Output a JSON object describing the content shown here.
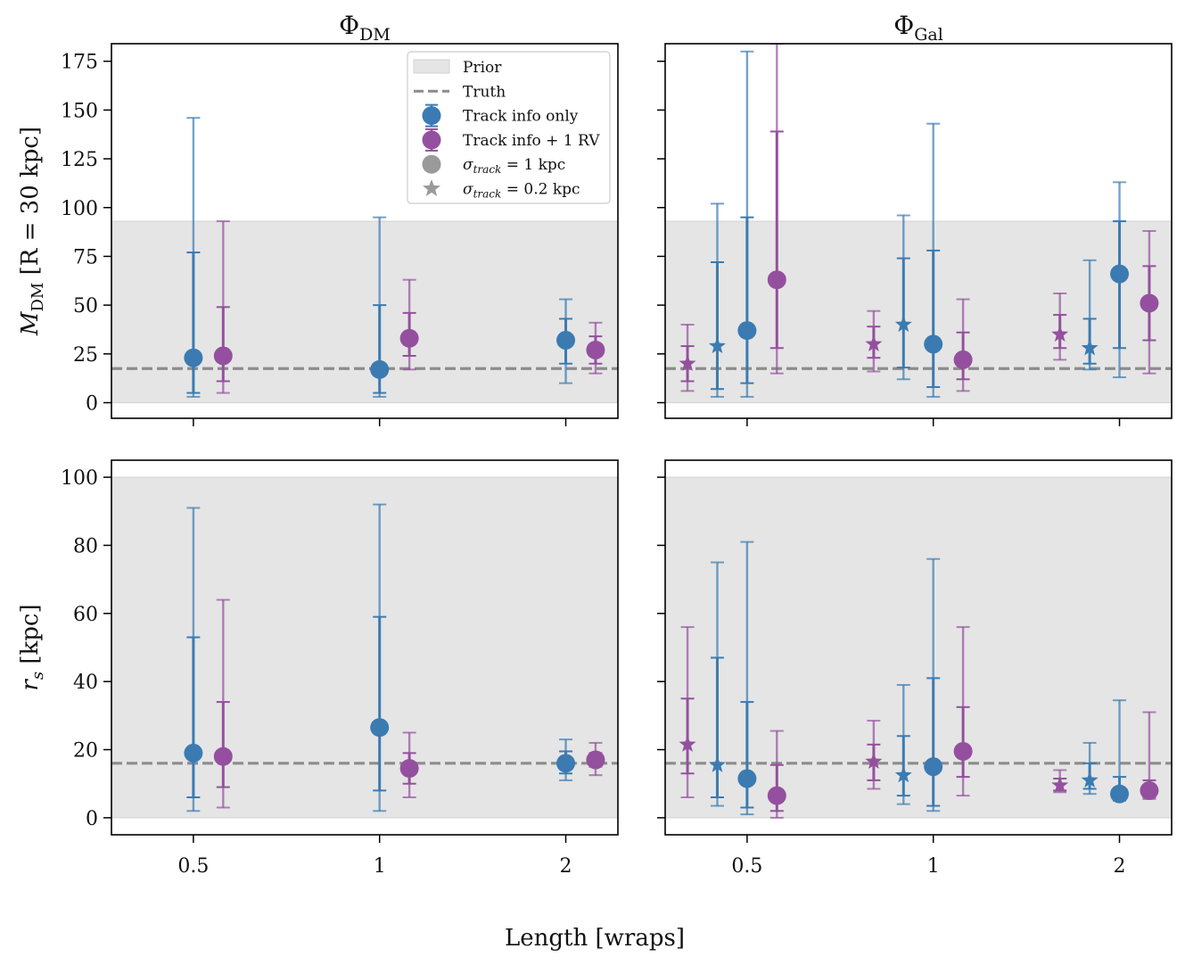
{
  "chart_data": {
    "type": "errorbar",
    "colors": {
      "track": "#3b7bb2",
      "track_rv": "#94509e",
      "prior": "#e5e5e5",
      "truth": "#8c8c8c",
      "legend_marker": "#9a9a9a"
    },
    "figure_xlabel": "Length [wraps]",
    "x_ticks": [
      {
        "value": 0.5,
        "label": "0.5"
      },
      {
        "value": 1,
        "label": "1"
      },
      {
        "value": 2,
        "label": "2"
      }
    ],
    "columns": [
      {
        "key": "dm",
        "title_main": "Φ",
        "title_sub": "DM"
      },
      {
        "key": "gal",
        "title_main": "Φ",
        "title_sub": "Gal"
      }
    ],
    "rows": [
      {
        "key": "mass",
        "ylabel_main": "M",
        "ylabel_sub": "DM",
        "ylabel_rest": "[R = 30 kpc]",
        "ylim": [
          -8,
          184
        ],
        "yticks": [
          0,
          25,
          50,
          75,
          100,
          125,
          150,
          175
        ],
        "prior": [
          0,
          93
        ],
        "truth": 17.5
      },
      {
        "key": "rs",
        "ylabel_main": "r",
        "ylabel_sub": "s",
        "ylabel_rest": "[kpc]",
        "ylim": [
          -5,
          105
        ],
        "yticks": [
          0,
          20,
          40,
          60,
          80,
          100
        ],
        "prior": [
          0,
          100
        ],
        "truth": 16
      }
    ],
    "legend": [
      {
        "key": "prior",
        "label": "Prior",
        "symbol": "patch"
      },
      {
        "key": "truth",
        "label": "Truth",
        "symbol": "dash"
      },
      {
        "key": "track",
        "label": "Track info only",
        "symbol": "errorbar-circle",
        "color": "track"
      },
      {
        "key": "track_rv",
        "label": "Track info + 1 RV",
        "symbol": "errorbar-circle",
        "color": "track_rv"
      },
      {
        "key": "sigma1",
        "label_sym": "σ",
        "label_sub": "track",
        "label_rest": " = 1 kpc",
        "symbol": "circle"
      },
      {
        "key": "sigma02",
        "label_sym": "σ",
        "label_sub": "track",
        "label_rest": " = 0.2 kpc",
        "symbol": "star"
      }
    ],
    "points": {
      "mass_dm": [
        {
          "series": "track",
          "marker": "circle",
          "x": 0.5,
          "xoff": 0.0,
          "val": 23,
          "in_lo": 5,
          "in_hi": 77,
          "out_lo": 3,
          "out_hi": 146
        },
        {
          "series": "track_rv",
          "marker": "circle",
          "x": 0.5,
          "xoff": 0.16,
          "val": 24,
          "in_lo": 11,
          "in_hi": 49,
          "out_lo": 5,
          "out_hi": 93
        },
        {
          "series": "track",
          "marker": "circle",
          "x": 1,
          "xoff": 0.0,
          "val": 17,
          "in_lo": 5,
          "in_hi": 50,
          "out_lo": 3,
          "out_hi": 95
        },
        {
          "series": "track_rv",
          "marker": "circle",
          "x": 1,
          "xoff": 0.16,
          "val": 33,
          "in_lo": 24,
          "in_hi": 46,
          "out_lo": 17,
          "out_hi": 63
        },
        {
          "series": "track",
          "marker": "circle",
          "x": 2,
          "xoff": 0.0,
          "val": 32,
          "in_lo": 20,
          "in_hi": 43,
          "out_lo": 10,
          "out_hi": 53
        },
        {
          "series": "track_rv",
          "marker": "circle",
          "x": 2,
          "xoff": 0.16,
          "val": 27,
          "in_lo": 20,
          "in_hi": 34,
          "out_lo": 15,
          "out_hi": 41
        }
      ],
      "mass_gal": [
        {
          "series": "track_rv",
          "marker": "star",
          "x": 0.5,
          "xoff": -0.32,
          "val": 20,
          "in_lo": 11,
          "in_hi": 29,
          "out_lo": 6,
          "out_hi": 40
        },
        {
          "series": "track",
          "marker": "star",
          "x": 0.5,
          "xoff": -0.16,
          "val": 29,
          "in_lo": 7,
          "in_hi": 72,
          "out_lo": 3,
          "out_hi": 102
        },
        {
          "series": "track",
          "marker": "circle",
          "x": 0.5,
          "xoff": 0.0,
          "val": 37,
          "in_lo": 10,
          "in_hi": 95,
          "out_lo": 3,
          "out_hi": 180
        },
        {
          "series": "track_rv",
          "marker": "circle",
          "x": 0.5,
          "xoff": 0.16,
          "val": 63,
          "in_lo": 28,
          "in_hi": 139,
          "out_lo": 15,
          "out_hi": 184
        },
        {
          "series": "track_rv",
          "marker": "star",
          "x": 1,
          "xoff": -0.32,
          "val": 30,
          "in_lo": 23,
          "in_hi": 39,
          "out_lo": 16,
          "out_hi": 47
        },
        {
          "series": "track",
          "marker": "star",
          "x": 1,
          "xoff": -0.16,
          "val": 40,
          "in_lo": 18,
          "in_hi": 74,
          "out_lo": 12,
          "out_hi": 96
        },
        {
          "series": "track",
          "marker": "circle",
          "x": 1,
          "xoff": 0.0,
          "val": 30,
          "in_lo": 8,
          "in_hi": 78,
          "out_lo": 3,
          "out_hi": 143
        },
        {
          "series": "track_rv",
          "marker": "circle",
          "x": 1,
          "xoff": 0.16,
          "val": 22,
          "in_lo": 12,
          "in_hi": 36,
          "out_lo": 6,
          "out_hi": 53
        },
        {
          "series": "track_rv",
          "marker": "star",
          "x": 2,
          "xoff": -0.32,
          "val": 35,
          "in_lo": 28,
          "in_hi": 45,
          "out_lo": 22,
          "out_hi": 56
        },
        {
          "series": "track",
          "marker": "star",
          "x": 2,
          "xoff": -0.16,
          "val": 28,
          "in_lo": 20,
          "in_hi": 43,
          "out_lo": 17,
          "out_hi": 73
        },
        {
          "series": "track",
          "marker": "circle",
          "x": 2,
          "xoff": 0.0,
          "val": 66,
          "in_lo": 28,
          "in_hi": 93,
          "out_lo": 13,
          "out_hi": 113
        },
        {
          "series": "track_rv",
          "marker": "circle",
          "x": 2,
          "xoff": 0.16,
          "val": 51,
          "in_lo": 32,
          "in_hi": 70,
          "out_lo": 15,
          "out_hi": 88
        }
      ],
      "rs_dm": [
        {
          "series": "track",
          "marker": "circle",
          "x": 0.5,
          "xoff": 0.0,
          "val": 19,
          "in_lo": 6,
          "in_hi": 53,
          "out_lo": 2,
          "out_hi": 91
        },
        {
          "series": "track_rv",
          "marker": "circle",
          "x": 0.5,
          "xoff": 0.16,
          "val": 18,
          "in_lo": 9,
          "in_hi": 34,
          "out_lo": 3,
          "out_hi": 64
        },
        {
          "series": "track",
          "marker": "circle",
          "x": 1,
          "xoff": 0.0,
          "val": 26.5,
          "in_lo": 8,
          "in_hi": 59,
          "out_lo": 2,
          "out_hi": 92
        },
        {
          "series": "track_rv",
          "marker": "circle",
          "x": 1,
          "xoff": 0.16,
          "val": 14.5,
          "in_lo": 10,
          "in_hi": 19,
          "out_lo": 6,
          "out_hi": 25
        },
        {
          "series": "track",
          "marker": "circle",
          "x": 2,
          "xoff": 0.0,
          "val": 16,
          "in_lo": 13,
          "in_hi": 19.5,
          "out_lo": 11,
          "out_hi": 23
        },
        {
          "series": "track_rv",
          "marker": "circle",
          "x": 2,
          "xoff": 0.16,
          "val": 17,
          "in_lo": 15,
          "in_hi": 19,
          "out_lo": 12.5,
          "out_hi": 22
        }
      ],
      "rs_gal": [
        {
          "series": "track_rv",
          "marker": "star",
          "x": 0.5,
          "xoff": -0.32,
          "val": 21.5,
          "in_lo": 13,
          "in_hi": 35,
          "out_lo": 6,
          "out_hi": 56
        },
        {
          "series": "track",
          "marker": "star",
          "x": 0.5,
          "xoff": -0.16,
          "val": 15.5,
          "in_lo": 6,
          "in_hi": 47,
          "out_lo": 3.5,
          "out_hi": 75
        },
        {
          "series": "track",
          "marker": "circle",
          "x": 0.5,
          "xoff": 0.0,
          "val": 11.5,
          "in_lo": 3,
          "in_hi": 34,
          "out_lo": 1,
          "out_hi": 81
        },
        {
          "series": "track_rv",
          "marker": "circle",
          "x": 0.5,
          "xoff": 0.16,
          "val": 6.5,
          "in_lo": 2,
          "in_hi": 15.5,
          "out_lo": 0,
          "out_hi": 25.5
        },
        {
          "series": "track_rv",
          "marker": "star",
          "x": 1,
          "xoff": -0.32,
          "val": 16.5,
          "in_lo": 11,
          "in_hi": 21.5,
          "out_lo": 8.5,
          "out_hi": 28.5
        },
        {
          "series": "track",
          "marker": "star",
          "x": 1,
          "xoff": -0.16,
          "val": 12.5,
          "in_lo": 6.5,
          "in_hi": 24,
          "out_lo": 4,
          "out_hi": 39
        },
        {
          "series": "track",
          "marker": "circle",
          "x": 1,
          "xoff": 0.0,
          "val": 15,
          "in_lo": 3.5,
          "in_hi": 41,
          "out_lo": 2,
          "out_hi": 76
        },
        {
          "series": "track_rv",
          "marker": "circle",
          "x": 1,
          "xoff": 0.16,
          "val": 19.5,
          "in_lo": 12,
          "in_hi": 32.5,
          "out_lo": 6.5,
          "out_hi": 56
        },
        {
          "series": "track_rv",
          "marker": "star",
          "x": 2,
          "xoff": -0.32,
          "val": 9.5,
          "in_lo": 8,
          "in_hi": 11.5,
          "out_lo": 7.5,
          "out_hi": 14
        },
        {
          "series": "track",
          "marker": "star",
          "x": 2,
          "xoff": -0.16,
          "val": 11,
          "in_lo": 8.5,
          "in_hi": 16,
          "out_lo": 7,
          "out_hi": 22
        },
        {
          "series": "track",
          "marker": "circle",
          "x": 2,
          "xoff": 0.0,
          "val": 7,
          "in_lo": 5.5,
          "in_hi": 12,
          "out_lo": 5,
          "out_hi": 34.5
        },
        {
          "series": "track_rv",
          "marker": "circle",
          "x": 2,
          "xoff": 0.16,
          "val": 8,
          "in_lo": 6,
          "in_hi": 11,
          "out_lo": 5.5,
          "out_hi": 31
        }
      ]
    }
  }
}
